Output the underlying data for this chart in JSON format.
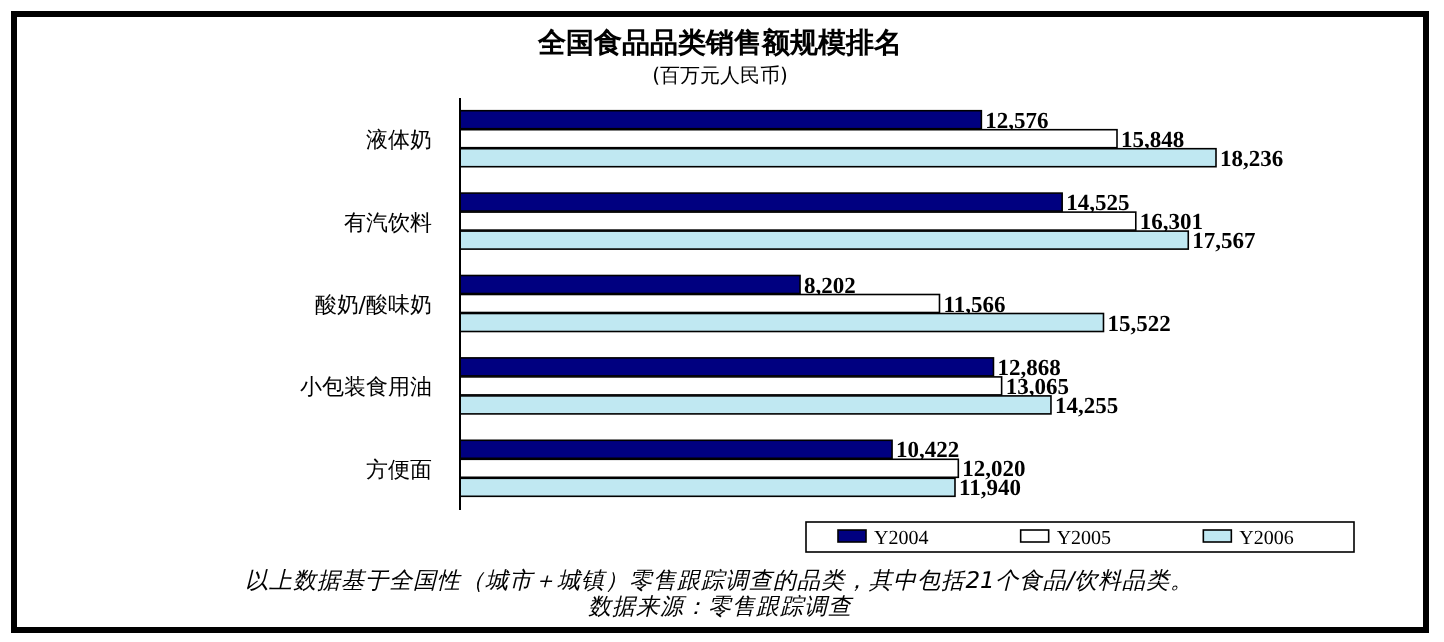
{
  "chart_data": {
    "type": "bar",
    "orientation": "horizontal",
    "title": "全国食品品类销售额规模排名",
    "subtitle": "(百万元人民币)",
    "categories": [
      "液体奶",
      "有汽饮料",
      "酸奶/酸味奶",
      "小包装食用油",
      "方便面"
    ],
    "series": [
      {
        "name": "Y2004",
        "color": "#000080",
        "values": [
          12576,
          14525,
          8202,
          12868,
          10422
        ],
        "value_labels": [
          "12,576",
          "14,525",
          "8,202",
          "12,868",
          "10,422"
        ]
      },
      {
        "name": "Y2005",
        "color": "#ffffff",
        "values": [
          15848,
          16301,
          11566,
          13065,
          12020
        ],
        "value_labels": [
          "15,848",
          "16,301",
          "11,566",
          "13,065",
          "12,020"
        ]
      },
      {
        "name": "Y2006",
        "color": "#c0e8f2",
        "values": [
          18236,
          17567,
          15522,
          14255,
          11940
        ],
        "value_labels": [
          "18,236",
          "17,567",
          "15,522",
          "14,255",
          "11,940"
        ]
      }
    ],
    "legend": "bottom right",
    "annotations": [
      "以上数据基于全国性（城市＋城镇）零售跟踪调查的品类，其中包括21个食品/饮料品类。",
      "数据来源：零售跟踪调查"
    ]
  }
}
